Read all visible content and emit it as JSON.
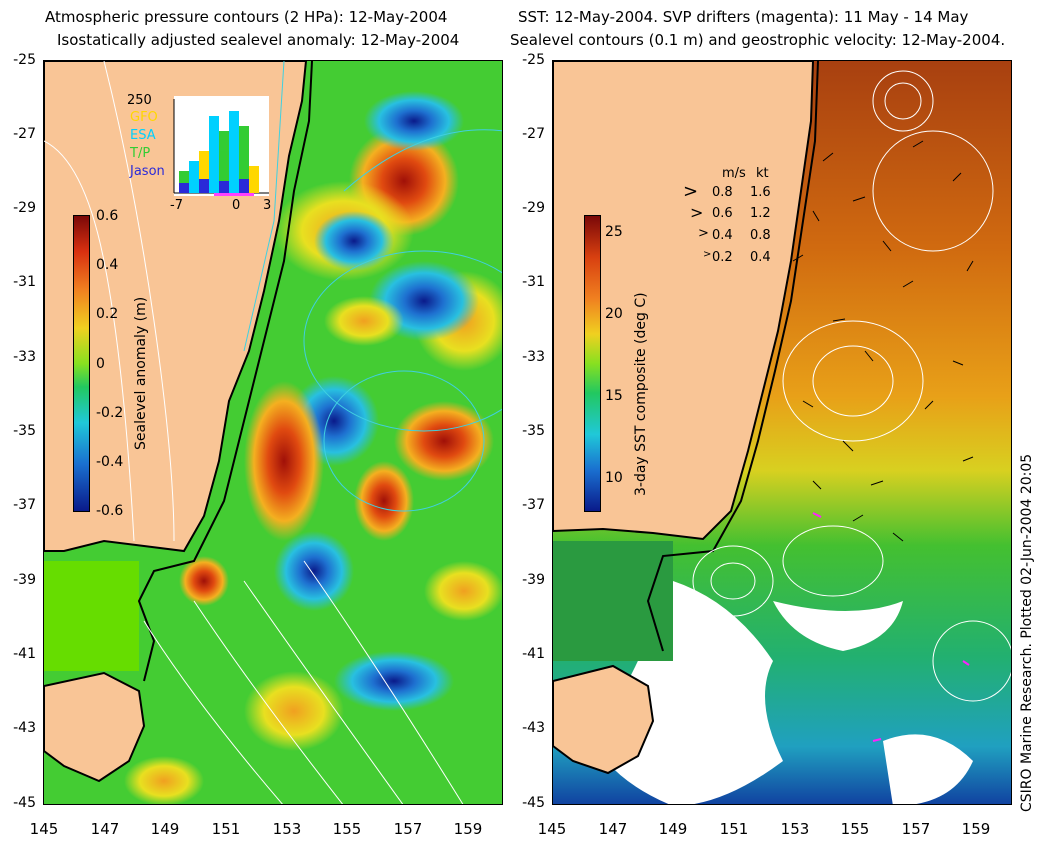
{
  "left": {
    "title_line1": "Atmospheric pressure contours (2 HPa): 12-May-2004",
    "title_line2": "Isostatically adjusted sealevel anomaly: 12-May-2004",
    "colorbar": {
      "label": "Sealevel anomaly (m)",
      "ticks": [
        "0.6",
        "0.4",
        "0.2",
        "0",
        "-0.2",
        "-0.4",
        "-0.6"
      ]
    },
    "inset": {
      "ymax": "250",
      "xticks": [
        "-7",
        "0",
        "3"
      ],
      "legend": [
        {
          "name": "GFO",
          "color": "#ffd700"
        },
        {
          "name": "ESA",
          "color": "#00d0ff"
        },
        {
          "name": "T/P",
          "color": "#33cc33"
        },
        {
          "name": "Jason",
          "color": "#2a2ad8"
        }
      ]
    }
  },
  "right": {
    "title_line1": "SST: 12-May-2004. SVP drifters (magenta): 11 May - 14 May",
    "title_line2": "Sealevel contours (0.1 m) and geostrophic velocity: 12-May-2004.",
    "colorbar": {
      "label": "3-day SST composite (deg C)",
      "ticks": [
        "25",
        "20",
        "15",
        "10"
      ]
    },
    "velocity_legend": {
      "header_ms": "m/s",
      "header_kt": "kt",
      "rows": [
        {
          "ms": "0.8",
          "kt": "1.6"
        },
        {
          "ms": "0.6",
          "kt": "1.2"
        },
        {
          "ms": "0.4",
          "kt": "0.8"
        },
        {
          "ms": "0.2",
          "kt": "0.4"
        }
      ]
    },
    "credit": "CSIRO Marine Research. Plotted 02-Jun-2004 20:05"
  },
  "axes": {
    "y_ticks": [
      "-25",
      "-27",
      "-29",
      "-31",
      "-33",
      "-35",
      "-37",
      "-39",
      "-41",
      "-43",
      "-45"
    ],
    "x_ticks": [
      "145",
      "147",
      "149",
      "151",
      "153",
      "155",
      "157",
      "159"
    ]
  },
  "colors": {
    "land": "#f9c596",
    "ocean_mid": "#33cc33",
    "warm": "#b01808",
    "cold": "#0a1a8a"
  }
}
